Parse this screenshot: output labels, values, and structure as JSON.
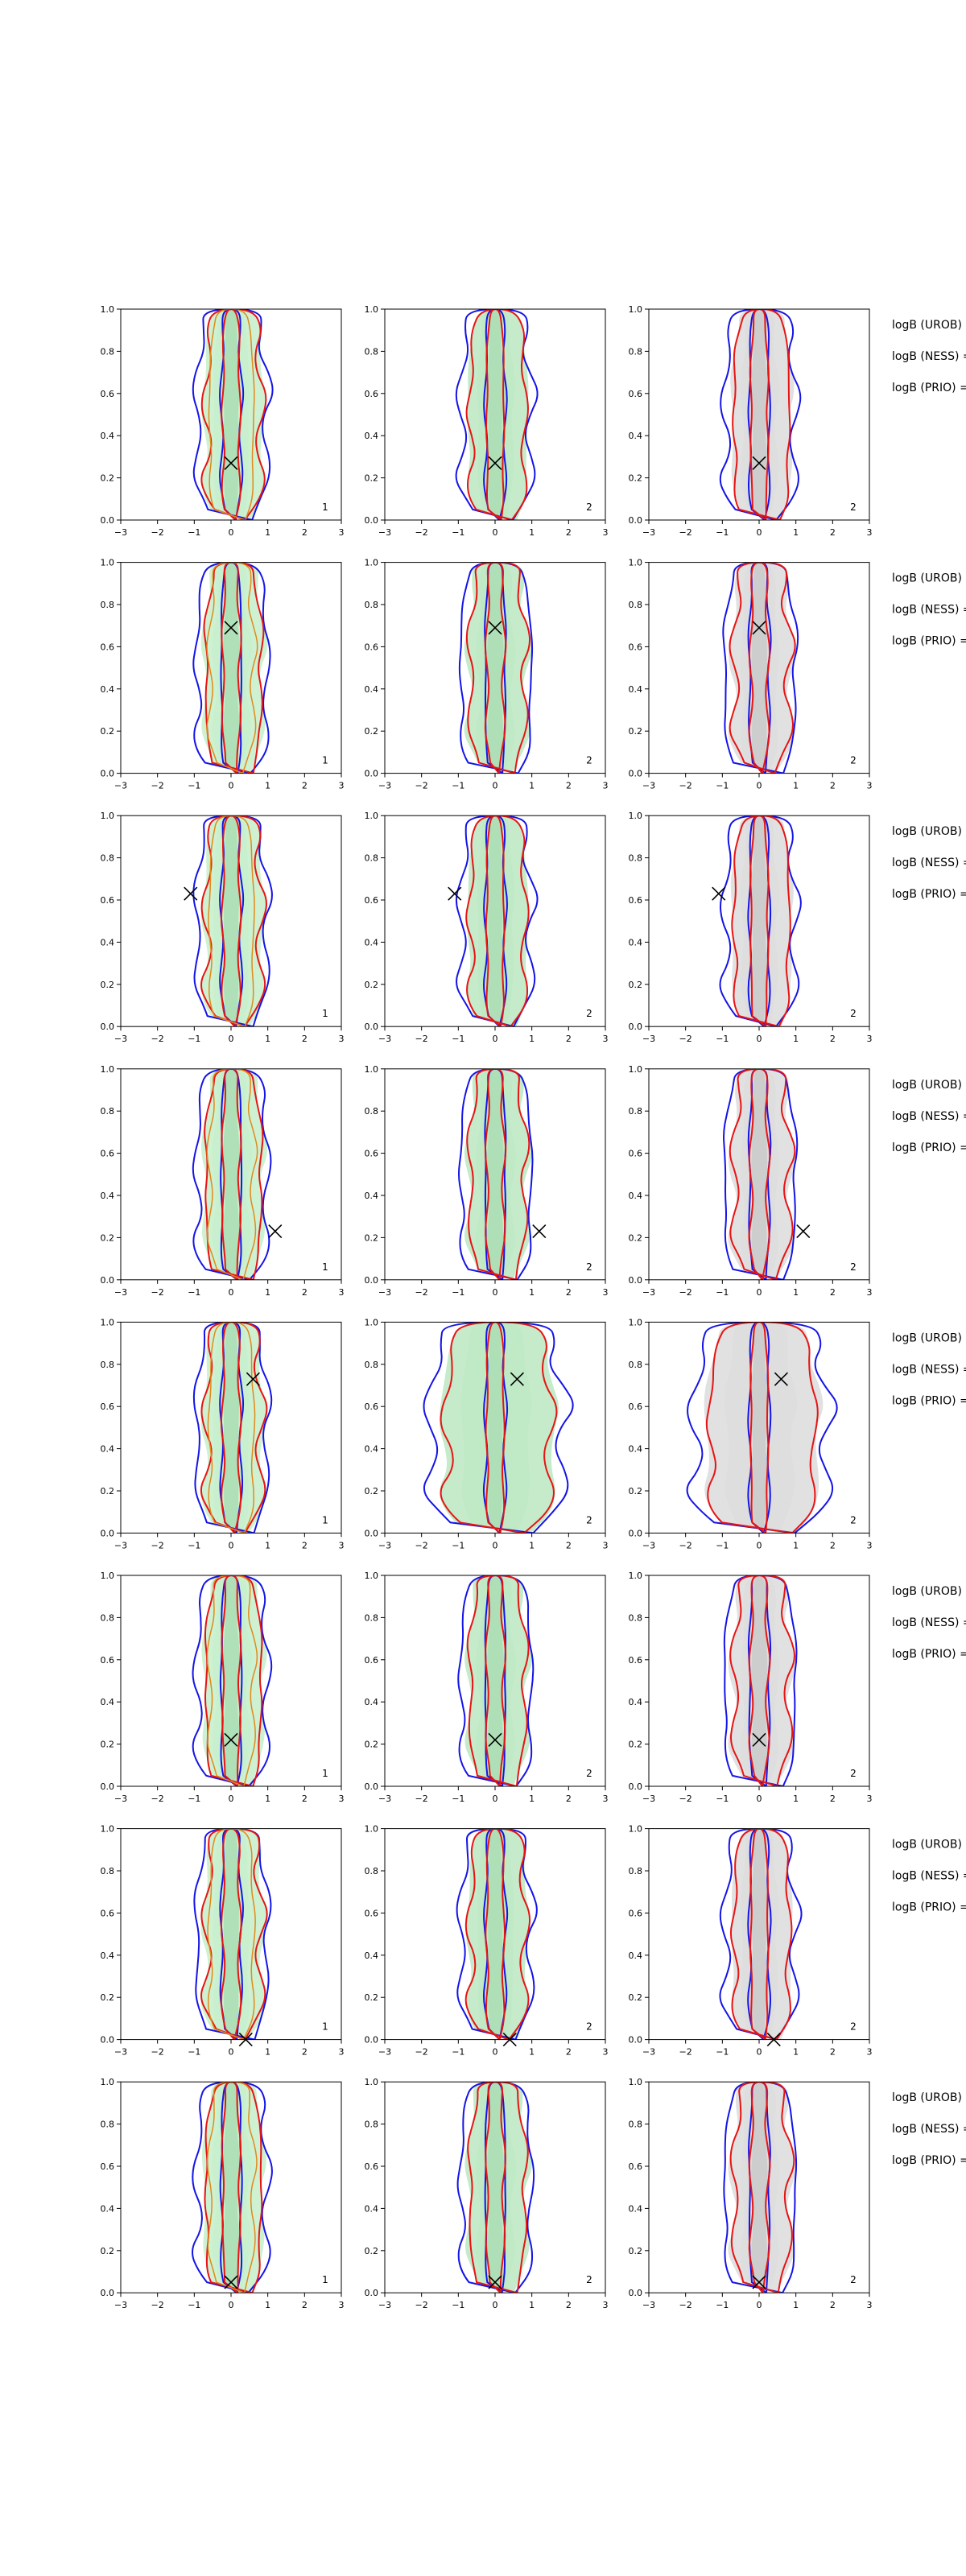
{
  "chart_data": {
    "type": "contour-grid",
    "layout": {
      "rows": 8,
      "cols": 3
    },
    "xlim": [
      -3,
      3
    ],
    "ylim": [
      0,
      1
    ],
    "xticks": [
      "−3",
      "−2",
      "−1",
      "0",
      "1",
      "2",
      "3"
    ],
    "yticks": [
      "0.0",
      "0.2",
      "0.4",
      "0.6",
      "0.8",
      "1.0"
    ],
    "colors": {
      "fill_left": "#c9f0cd",
      "fill_mid": "#bfe9c5",
      "fill_right": "#dedede",
      "contour_blue": "#1414e6",
      "contour_red": "#e61414",
      "contour_orange": "#e08a1e",
      "marker": "#000000"
    },
    "side_labels": [
      "logB (UROB) =",
      "logB (NESS) =",
      "logB (PRIO) ="
    ],
    "rows": [
      {
        "marker": [
          0.0,
          0.27
        ],
        "corner_labels": [
          "1",
          "2",
          "2"
        ]
      },
      {
        "marker": [
          0.0,
          0.69
        ],
        "corner_labels": [
          "1",
          "2",
          "2"
        ]
      },
      {
        "marker": [
          -1.1,
          0.63
        ],
        "corner_labels": [
          "1",
          "2",
          "2"
        ]
      },
      {
        "marker": [
          1.2,
          0.23
        ],
        "corner_labels": [
          "1",
          "2",
          "2"
        ]
      },
      {
        "marker": [
          0.6,
          0.73
        ],
        "corner_labels": [
          "1",
          "2",
          "2"
        ]
      },
      {
        "marker": [
          0.0,
          0.22
        ],
        "corner_labels": [
          "1",
          "2",
          "2"
        ]
      },
      {
        "marker": [
          0.4,
          0.0
        ],
        "corner_labels": [
          "1",
          "2",
          "2"
        ]
      },
      {
        "marker": [
          0.0,
          0.05
        ],
        "corner_labels": [
          "1",
          "2",
          "2"
        ]
      }
    ]
  }
}
